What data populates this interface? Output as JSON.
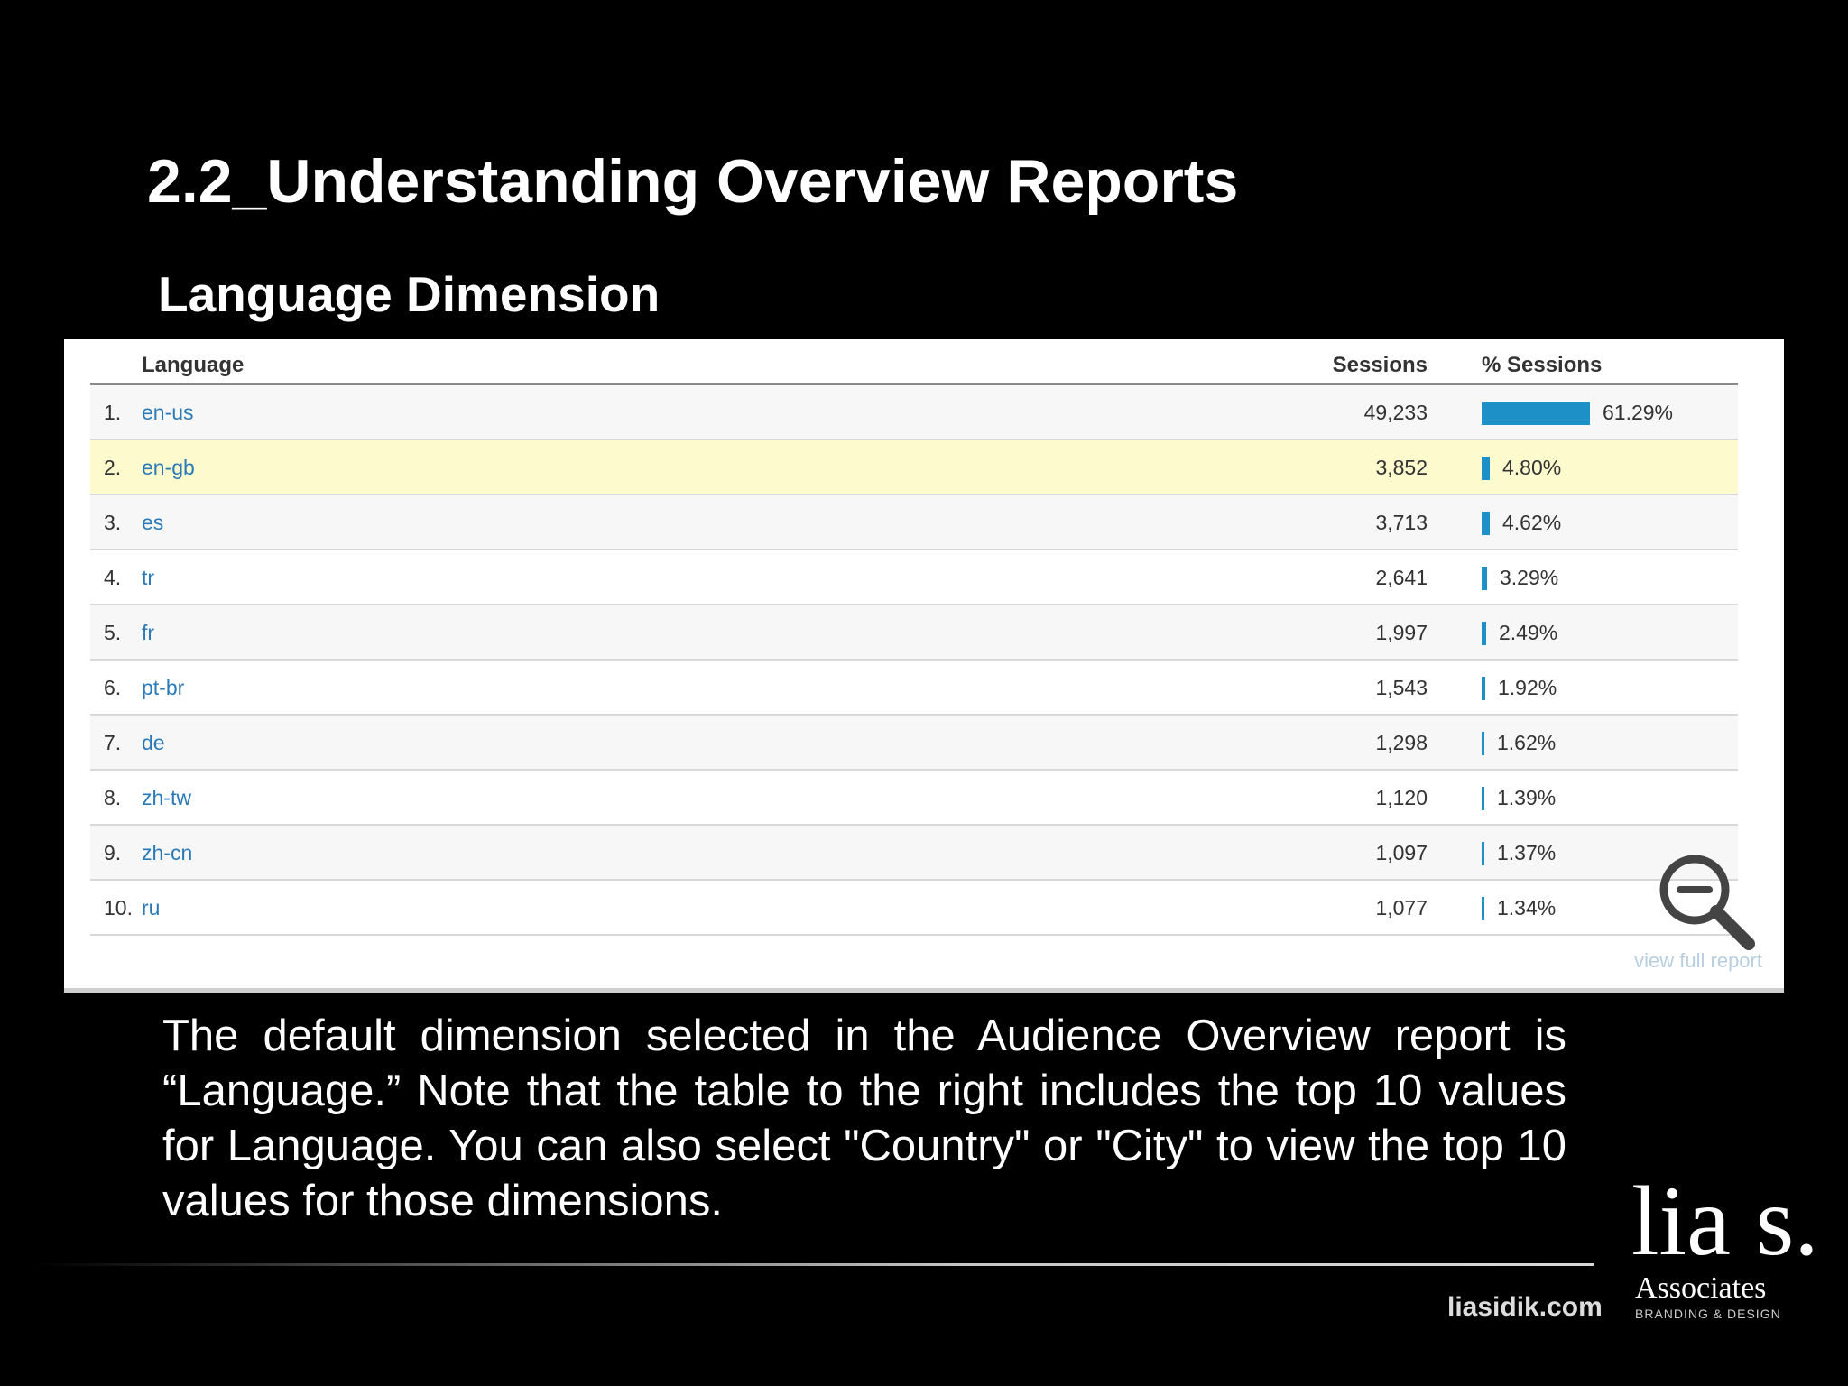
{
  "slide": {
    "title": "2.2_Understanding Overview Reports",
    "subtitle": "Language Dimension",
    "body": "The default dimension selected in the Audience Overview report is “Language.” Note that the table to the right includes the top 10 values for Language. You can also select \"Country\" or \"City\" to view the top 10 values for those dimensions."
  },
  "table": {
    "headers": {
      "language": "Language",
      "sessions": "Sessions",
      "pct_sessions": "% Sessions"
    },
    "rows": [
      {
        "rank": "1.",
        "language": "en-us",
        "sessions": "49,233",
        "pct": "61.29%",
        "share": 0.6129
      },
      {
        "rank": "2.",
        "language": "en-gb",
        "sessions": "3,852",
        "pct": "4.80%",
        "share": 0.048
      },
      {
        "rank": "3.",
        "language": "es",
        "sessions": "3,713",
        "pct": "4.62%",
        "share": 0.0462
      },
      {
        "rank": "4.",
        "language": "tr",
        "sessions": "2,641",
        "pct": "3.29%",
        "share": 0.0329
      },
      {
        "rank": "5.",
        "language": "fr",
        "sessions": "1,997",
        "pct": "2.49%",
        "share": 0.0249
      },
      {
        "rank": "6.",
        "language": "pt-br",
        "sessions": "1,543",
        "pct": "1.92%",
        "share": 0.0192
      },
      {
        "rank": "7.",
        "language": "de",
        "sessions": "1,298",
        "pct": "1.62%",
        "share": 0.0162
      },
      {
        "rank": "8.",
        "language": "zh-tw",
        "sessions": "1,120",
        "pct": "1.39%",
        "share": 0.0139
      },
      {
        "rank": "9.",
        "language": "zh-cn",
        "sessions": "1,097",
        "pct": "1.37%",
        "share": 0.0137
      },
      {
        "rank": "10.",
        "language": "ru",
        "sessions": "1,077",
        "pct": "1.34%",
        "share": 0.0134
      }
    ],
    "view_full_report": "view full report",
    "bar_color": "#1e90c8",
    "highlight_color": "#fdfbce",
    "link_color": "#2a7ab8"
  },
  "footer": {
    "url": "liasidik.com",
    "logo_text": "lia s.",
    "logo_sub": "Associates",
    "logo_tagline": "BRANDING & DESIGN"
  },
  "icons": {
    "zoom": "zoom-out-icon"
  }
}
